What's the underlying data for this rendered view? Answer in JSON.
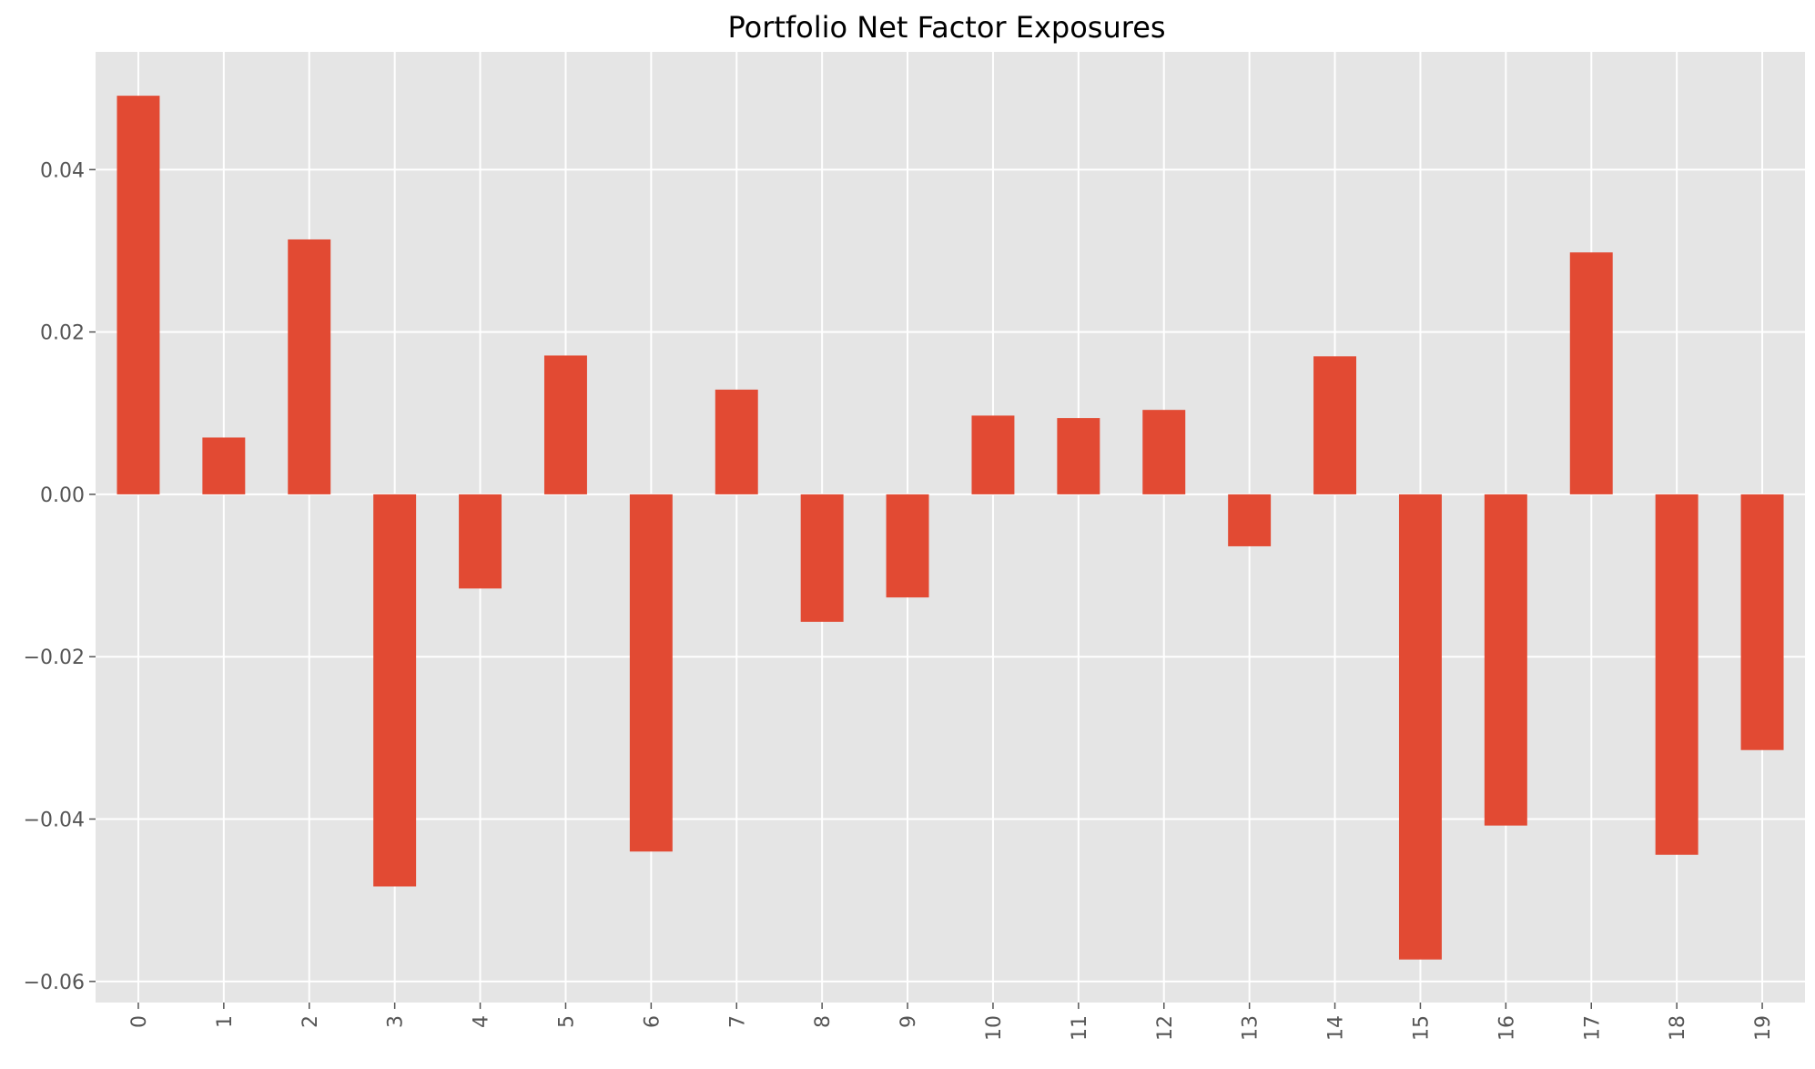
{
  "chart_data": {
    "type": "bar",
    "title": "Portfolio Net Factor Exposures",
    "xlabel": "",
    "ylabel": "",
    "categories": [
      "0",
      "1",
      "2",
      "3",
      "4",
      "5",
      "6",
      "7",
      "8",
      "9",
      "10",
      "11",
      "12",
      "13",
      "14",
      "15",
      "16",
      "17",
      "18",
      "19"
    ],
    "values": [
      0.0491,
      0.007,
      0.0314,
      -0.0483,
      -0.0116,
      0.0171,
      -0.044,
      0.0129,
      -0.0157,
      -0.0127,
      0.0097,
      0.0094,
      0.0104,
      -0.0064,
      0.017,
      -0.0573,
      -0.0408,
      0.0298,
      -0.0444,
      -0.0315
    ],
    "ylim": [
      -0.0626,
      0.0545
    ],
    "yticks": [
      -0.06,
      -0.04,
      -0.02,
      0.0,
      0.02,
      0.04
    ],
    "ytick_labels": [
      "−0.06",
      "−0.04",
      "−0.02",
      "0.00",
      "0.02",
      "0.04"
    ],
    "xtick_rotation": 90,
    "grid": true,
    "legend": "none",
    "colors": {
      "bar": "#E24A33",
      "plot_background": "#E5E5E5",
      "grid": "#FFFFFF",
      "tick_text": "#555555",
      "title_text": "#000000"
    }
  }
}
